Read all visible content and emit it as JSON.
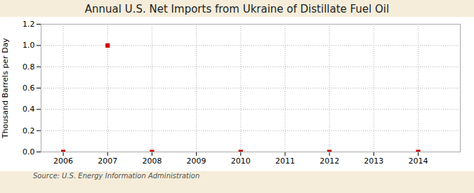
{
  "chart_data": {
    "type": "scatter",
    "title": "Annual U.S. Net Imports from Ukraine of Distillate Fuel Oil",
    "ylabel": "Thousand Barrels per Day",
    "annotation": "Source: U.S. Energy Information Administration",
    "x": [
      2006,
      2007,
      2008,
      2010,
      2012,
      2014
    ],
    "values": [
      0.0,
      1.0,
      0.0,
      0.0,
      0.0,
      0.0
    ],
    "color": "#CC0000",
    "marker": "square",
    "xlim": [
      2005.5,
      2014.95
    ],
    "xticks": [
      2006,
      2007,
      2008,
      2009,
      2010,
      2011,
      2012,
      2013,
      2014
    ],
    "ylim": [
      0.0,
      1.2
    ],
    "yticks": [
      {
        "value": 0,
        "label": "0.0"
      },
      0.2,
      0.4,
      0.6,
      0.8,
      {
        "value": 1,
        "label": "1.0"
      },
      1.2
    ],
    "grid": true
  }
}
